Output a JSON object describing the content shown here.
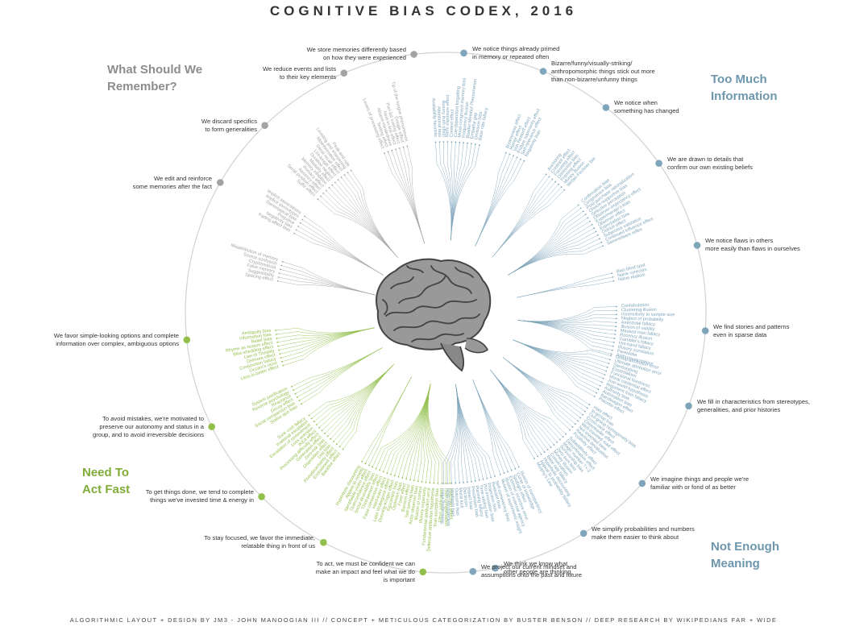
{
  "title": "COGNITIVE BIAS CODEX, 2016",
  "credits": "ALGORITHMIC LAYOUT + DESIGN BY JM3 - JOHN MANOOGIAN III // CONCEPT + METICULOUS CATEGORIZATION BY BUSTER BENSON // DEEP RESEARCH BY WIKIPEDIANS FAR + WIDE",
  "colors": {
    "remember": "#a3a3a3",
    "information": "#7fa5bb",
    "meaning": "#7fa5bb",
    "act": "#93bf4c",
    "ring": "#d2d2d2",
    "text": "#333333"
  },
  "categories": {
    "remember": [
      "What Should We",
      "Remember?"
    ],
    "information": [
      "Too Much",
      "Information"
    ],
    "act": [
      "Need To",
      "Act Fast"
    ],
    "meaning": [
      "Not Enough",
      "Meaning"
    ]
  },
  "groups": [
    {
      "cat": "remember",
      "lines": [
        "We store memories differently based",
        "on how they were experienced"
      ],
      "biases": [
        "Levels of processing effect",
        "Testing effect",
        "Absent-mindedness",
        "Next-in-line effect",
        "Part-list cueing effect",
        "Google effect",
        "Tip of the tongue phenomenon"
      ]
    },
    {
      "cat": "remember",
      "lines": [
        "We reduce events and lists",
        "to their key elements"
      ],
      "biases": [
        "Suffix effect",
        "Serial position effect",
        "Recency effect",
        "Primacy effect",
        "Memory inhibition",
        "Modality effect",
        "Duration neglect",
        "List-length effect",
        "Serial recall effect",
        "Misinformation effect",
        "Leveling and sharpening",
        "Peak-end rule"
      ]
    },
    {
      "cat": "remember",
      "lines": [
        "We discard specifics",
        "to form generalities"
      ],
      "biases": [
        "Fading affect bias",
        "Negativity bias",
        "Prejudice",
        "Stereotypical bias",
        "Implicit stereotypes",
        "Implicit associations"
      ]
    },
    {
      "cat": "remember",
      "lines": [
        "We edit and reinforce",
        "some memories after the fact"
      ],
      "biases": [
        "Spacing effect",
        "Suggestibility",
        "False memory",
        "Cryptomnesia",
        "Source confusion",
        "Misattribution of memory"
      ]
    },
    {
      "cat": "act",
      "lines": [
        "We favor simple-looking options and complete",
        "information over complex, ambiguous options"
      ],
      "biases": [
        "Less-is-better effect",
        "Occam's razor",
        "Conjunction fallacy",
        "Delmore effect",
        "Law of Triviality",
        "Bike-shedding effect",
        "Rhyme as reason effect",
        "Belief bias",
        "Information bias",
        "Ambiguity bias"
      ]
    },
    {
      "cat": "act",
      "lines": [
        "To avoid mistakes, we're motivated to",
        "preserve our autonomy and status in a",
        "group, and to avoid irreversible decisions"
      ],
      "biases": [
        "Status quo bias",
        "Social comparison bias",
        "Decoy effect",
        "Reactance",
        "Reverse psychology",
        "System justification"
      ]
    },
    {
      "cat": "act",
      "lines": [
        "To get things done, we tend to complete",
        "things we've invested time & energy in"
      ],
      "biases": [
        "Backfire effect",
        "Endowment effect",
        "Pseudocertainty effect",
        "Unit bias",
        "Disposition effect",
        "Zero-risk bias",
        "Generation effect",
        "Processing difficulty effect",
        "IKEA effect",
        "Loss aversion",
        "Escalation of commitment",
        "Irrational escalation",
        "Sunk cost fallacy"
      ]
    },
    {
      "cat": "act",
      "lines": [
        "To stay focused, we favor the immediate,",
        "relatable thing in front of us"
      ],
      "biases": [
        "Identifiable victim effect",
        "Appeal to novelty",
        "Hyperbolic discounting"
      ]
    },
    {
      "cat": "act",
      "lines": [
        "To act, we must be confident we can",
        "make an impact and feel what we do",
        "is important"
      ],
      "biases": [
        "Peltzman effect",
        "Risk compensation",
        "Effort justification",
        "Trait ascription bias",
        "Defensive attribution hypothesis",
        "Fundamental attribution error",
        "Illusory superiority",
        "Illusion of control",
        "Actor-observer bias",
        "Self-serving bias",
        "Barnum effect",
        "Forer effect",
        "Optimism bias",
        "Egocentric bias",
        "Dunning-Kruger effect",
        "Lake Wobegone effect",
        "Hard-easy effect",
        "False consensus effect",
        "Third-person effect",
        "Social desirability bias",
        "Overconfidence effect"
      ]
    },
    {
      "cat": "meaning",
      "lines": [
        "We project our current mindset and",
        "assumptions onto the past and future"
      ],
      "biases": [
        "Self-consistency bias",
        "Restraint bias",
        "Projection bias",
        "Pro-innovation bias",
        "Time-saving bias",
        "Planning fallacy",
        "Pessimism bias",
        "Impact bias",
        "Declinism",
        "Moral luck",
        "Outcome bias",
        "Hindsight bias",
        "Rosy retrospection",
        "Telescoping effect"
      ]
    },
    {
      "cat": "meaning",
      "lines": [
        "We think we know what",
        "other people are thinking"
      ],
      "biases": [
        "Illusion of transparency",
        "Curse of knowledge",
        "Spotlight effect",
        "Extrinsic incentive error",
        "Illusion of external agency",
        "Illusion of asymmetric insight"
      ]
    },
    {
      "cat": "meaning",
      "lines": [
        "We simplify probabilities and numbers",
        "make them easier to think about"
      ],
      "biases": [
        "Subadditivity effect",
        "Denomination effect",
        "Magic number 7+-2",
        "Survivorship bias",
        "Zero sum bias",
        "Money illusion",
        "Conservatism",
        "Base rate fallacy",
        "Hyperbolic discounting",
        "Appeal to probability fallacy",
        "Murphy's Law"
      ]
    },
    {
      "cat": "meaning",
      "lines": [
        "We imagine things and people we're",
        "familiar with or fond of as better"
      ],
      "biases": [
        "Halo effect",
        "In-group bias",
        "Out-group homogeneity bias",
        "Cross-race effect",
        "Cheerleader effect",
        "Well-traveled road effect",
        "Not invented here",
        "Reactive devaluation",
        "Positivity effect"
      ]
    },
    {
      "cat": "meaning",
      "lines": [
        "We fill in characteristics from stereotypes,",
        "generalities, and prior histories"
      ],
      "biases": [
        "Group attribution error",
        "Ultimate attribution error",
        "Stereotyping",
        "Essentialism",
        "Functional fixedness",
        "Moral credential effect",
        "Just-world hypothesis",
        "Argument from fallacy",
        "Authority bias",
        "Automation bias",
        "Bandwagon effect",
        "Placebo effect"
      ]
    },
    {
      "cat": "meaning",
      "lines": [
        "We find stories and patterns",
        "even in sparse data"
      ],
      "biases": [
        "Confabulation",
        "Clustering illusion",
        "Insensitivity to sample size",
        "Neglect of probability",
        "Anecdotal fallacy",
        "Illusion of validity",
        "Masked man fallacy",
        "Recency illusion",
        "Gambler's fallacy",
        "Hot-hand fallacy",
        "Illusory correlation",
        "Pareidolia",
        "Anthropomorphism"
      ]
    },
    {
      "cat": "information",
      "lines": [
        "We notice flaws in others",
        "more easily than flaws in ourselves"
      ],
      "biases": [
        "Bias blind spot",
        "Naive cynicism",
        "Naive realism"
      ]
    },
    {
      "cat": "information",
      "lines": [
        "We are drawn to details that",
        "confirm our own existing beliefs"
      ],
      "biases": [
        "Confirmation bias",
        "Congruence bias",
        "Post-purchase rationalization",
        "Choice-supportive bias",
        "Selective perception",
        "Observer-expectancy effect",
        "Experimenter's bias",
        "Observer effect",
        "Expectation bias",
        "Ostrich effect",
        "Subjective validation",
        "Continued influence effect",
        "Semmelweis reflex"
      ]
    },
    {
      "cat": "information",
      "lines": [
        "We notice when",
        "something has changed"
      ],
      "biases": [
        "Anchoring",
        "Contrast effect",
        "Focusing effect",
        "Distinction bias",
        "Framing effect",
        "Money illusion",
        "Weber-Fechner law"
      ]
    },
    {
      "cat": "information",
      "lines": [
        "Bizarre/funny/visually-striking/",
        "anthropomorphic things stick out more",
        "than non-bizarre/unfunny things"
      ],
      "biases": [
        "Bizarreness effect",
        "Humor effect",
        "Von Restorff effect",
        "Picture superiority effect",
        "Self-relevance effect",
        "Negativity bias"
      ]
    },
    {
      "cat": "information",
      "lines": [
        "We notice things already primed",
        "in memory or repeated often"
      ],
      "biases": [
        "Availability heuristic",
        "Attentional bias",
        "Illusory truth effect",
        "Mere exposure effect",
        "Context effect",
        "Cue-dependent forgetting",
        "Mood-congruent memory bias",
        "Frequency illusion",
        "Baader-Meinhof Phenomenon",
        "Empathy gap",
        "Omission bias",
        "Base rate fallacy"
      ]
    }
  ]
}
